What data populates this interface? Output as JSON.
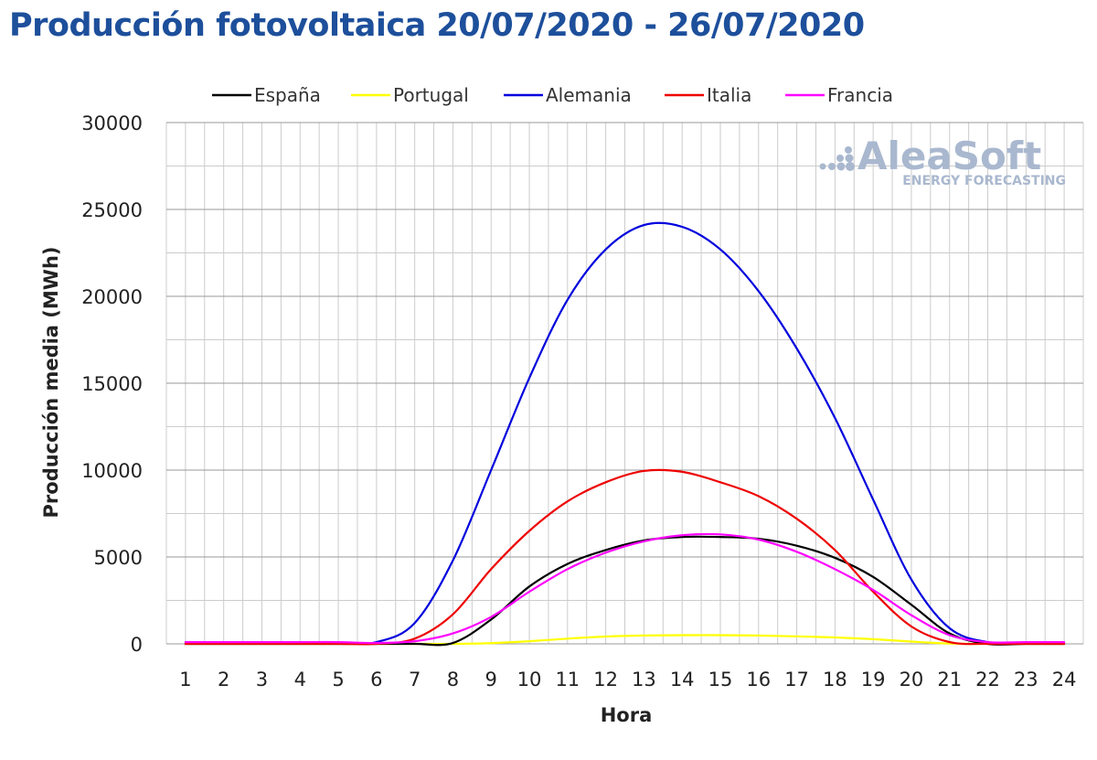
{
  "chart_data": {
    "type": "line",
    "title": "Producción fotovoltaica 20/07/2020 - 26/07/2020",
    "xlabel": "Hora",
    "ylabel": "Producción media (MWh)",
    "ylim": [
      0,
      30000
    ],
    "yticks": [
      0,
      5000,
      10000,
      15000,
      20000,
      25000,
      30000
    ],
    "grid": "on",
    "legend_position": "top",
    "x": [
      1,
      2,
      3,
      4,
      5,
      6,
      7,
      8,
      9,
      10,
      11,
      12,
      13,
      14,
      15,
      16,
      17,
      18,
      19,
      20,
      21,
      22,
      23,
      24
    ],
    "series": [
      {
        "name": "España",
        "color": "#000000",
        "values": [
          0,
          0,
          0,
          0,
          0,
          0,
          0,
          50,
          1400,
          3300,
          4600,
          5400,
          5950,
          6150,
          6150,
          6050,
          5650,
          4950,
          3850,
          2250,
          600,
          0,
          0,
          0
        ]
      },
      {
        "name": "Portugal",
        "color": "#ffff00",
        "values": [
          0,
          0,
          0,
          0,
          0,
          0,
          0,
          0,
          40,
          150,
          300,
          420,
          480,
          500,
          500,
          480,
          430,
          370,
          270,
          130,
          20,
          0,
          0,
          0
        ]
      },
      {
        "name": "Alemania",
        "color": "#0000dd",
        "values": [
          50,
          50,
          50,
          50,
          50,
          100,
          1200,
          4800,
          10000,
          15300,
          19800,
          22700,
          24100,
          24000,
          22700,
          20300,
          17000,
          13000,
          8300,
          3700,
          900,
          100,
          50,
          50
        ]
      },
      {
        "name": "Italia",
        "color": "#ee0000",
        "values": [
          0,
          0,
          0,
          0,
          0,
          0,
          300,
          1700,
          4300,
          6500,
          8200,
          9300,
          9950,
          9900,
          9300,
          8500,
          7200,
          5400,
          3000,
          1000,
          100,
          0,
          0,
          0
        ]
      },
      {
        "name": "Francia",
        "color": "#ff00ff",
        "values": [
          100,
          100,
          100,
          100,
          100,
          50,
          150,
          600,
          1550,
          3000,
          4300,
          5250,
          5900,
          6250,
          6300,
          6000,
          5300,
          4300,
          3100,
          1650,
          500,
          100,
          100,
          100
        ]
      }
    ]
  },
  "watermark": {
    "brand": "AleaSoft",
    "tagline": "ENERGY FORECASTING"
  }
}
